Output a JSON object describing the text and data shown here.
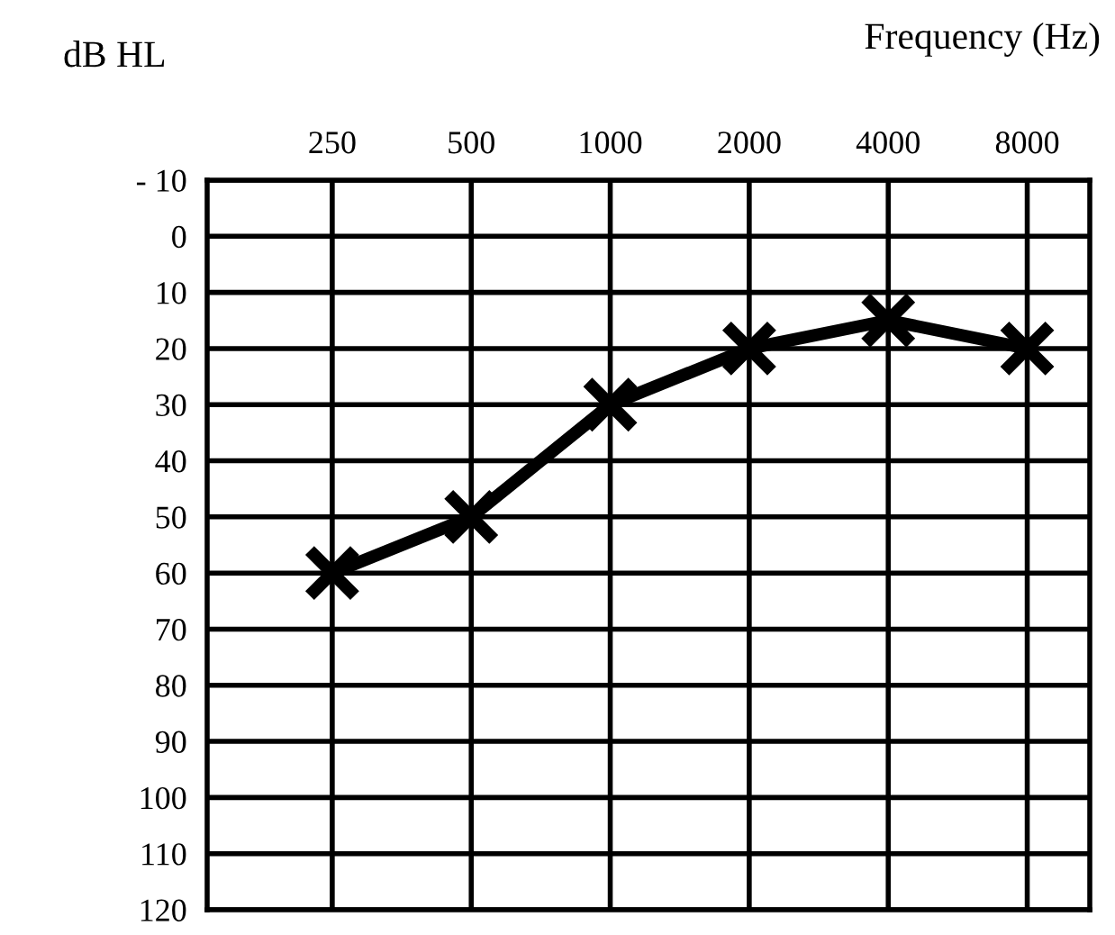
{
  "chart_data": {
    "type": "line",
    "xlabel": "Frequency (Hz)",
    "ylabel": "dB HL",
    "categories": [
      "250",
      "500",
      "1000",
      "2000",
      "4000",
      "8000"
    ],
    "values": [
      60,
      50,
      30,
      20,
      15,
      20
    ],
    "color": "#000000",
    "ylim": [
      120,
      -10
    ],
    "yticks": [
      {
        "value": -10,
        "label": "- 10"
      },
      0,
      10,
      20,
      30,
      40,
      50,
      60,
      70,
      80,
      90,
      100,
      110,
      120
    ],
    "grid": true,
    "marker": "cross",
    "line_style": "solid",
    "legend": false
  }
}
